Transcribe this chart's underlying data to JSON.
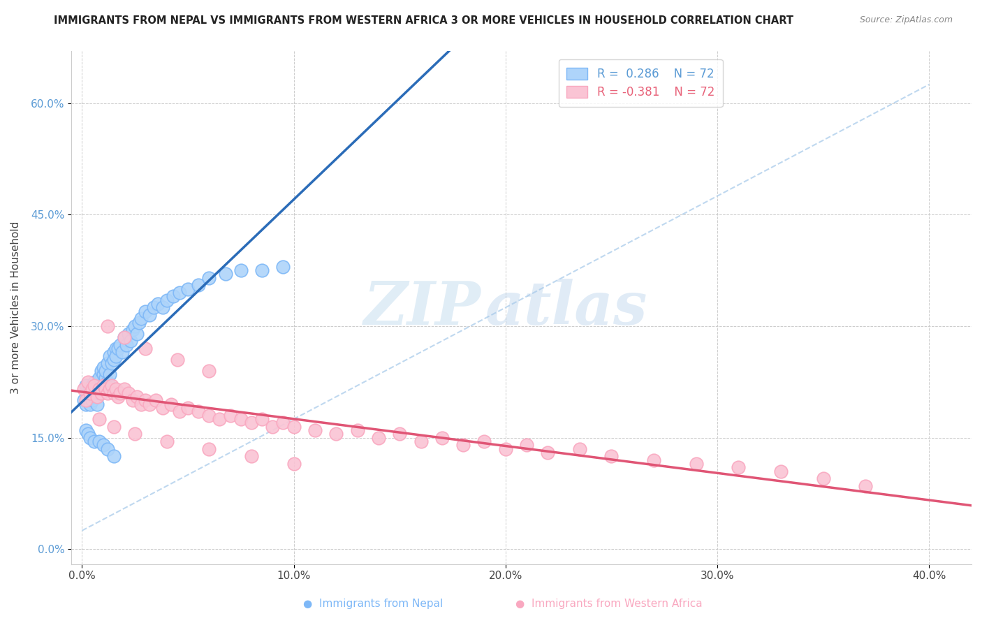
{
  "title": "IMMIGRANTS FROM NEPAL VS IMMIGRANTS FROM WESTERN AFRICA 3 OR MORE VEHICLES IN HOUSEHOLD CORRELATION CHART",
  "source": "Source: ZipAtlas.com",
  "ylabel": "3 or more Vehicles in Household",
  "x_tick_positions": [
    0.0,
    0.1,
    0.2,
    0.3,
    0.4
  ],
  "x_tick_labels": [
    "0.0%",
    "10.0%",
    "20.0%",
    "30.0%",
    "40.0%"
  ],
  "y_ticks": [
    0.0,
    0.15,
    0.3,
    0.45,
    0.6
  ],
  "y_tick_labels": [
    "0.0%",
    "15.0%",
    "30.0%",
    "45.0%",
    "60.0%"
  ],
  "xlim": [
    -0.005,
    0.42
  ],
  "ylim": [
    -0.02,
    0.67
  ],
  "nepal_color": "#7EB8F7",
  "nepal_color_fill": "#AED4FA",
  "wafrica_color": "#F9A8C0",
  "wafrica_color_fill": "#FAC4D4",
  "nepal_line_color": "#2B6CB8",
  "wafrica_line_color": "#E05575",
  "dashed_line_color": "#B8D4EE",
  "nepal_R": 0.286,
  "nepal_N": 72,
  "wafrica_R": -0.381,
  "wafrica_N": 72,
  "legend_label_nepal": "Immigrants from Nepal",
  "legend_label_wafrica": "Immigrants from Western Africa",
  "watermark_zip": "ZIP",
  "watermark_atlas": "atlas",
  "nepal_scatter_x": [
    0.001,
    0.002,
    0.002,
    0.003,
    0.003,
    0.003,
    0.004,
    0.004,
    0.004,
    0.005,
    0.005,
    0.005,
    0.006,
    0.006,
    0.006,
    0.007,
    0.007,
    0.007,
    0.008,
    0.008,
    0.008,
    0.009,
    0.009,
    0.01,
    0.01,
    0.01,
    0.011,
    0.011,
    0.012,
    0.012,
    0.013,
    0.013,
    0.014,
    0.015,
    0.015,
    0.016,
    0.016,
    0.017,
    0.018,
    0.019,
    0.02,
    0.021,
    0.022,
    0.023,
    0.024,
    0.025,
    0.026,
    0.027,
    0.028,
    0.03,
    0.032,
    0.034,
    0.036,
    0.038,
    0.04,
    0.043,
    0.046,
    0.05,
    0.055,
    0.06,
    0.068,
    0.075,
    0.085,
    0.095,
    0.002,
    0.003,
    0.004,
    0.006,
    0.008,
    0.01,
    0.012,
    0.015
  ],
  "nepal_scatter_y": [
    0.2,
    0.195,
    0.22,
    0.215,
    0.2,
    0.21,
    0.205,
    0.215,
    0.195,
    0.21,
    0.2,
    0.22,
    0.215,
    0.205,
    0.225,
    0.205,
    0.195,
    0.22,
    0.21,
    0.225,
    0.23,
    0.215,
    0.24,
    0.22,
    0.235,
    0.245,
    0.23,
    0.24,
    0.225,
    0.25,
    0.235,
    0.26,
    0.25,
    0.265,
    0.255,
    0.27,
    0.26,
    0.27,
    0.275,
    0.265,
    0.285,
    0.275,
    0.29,
    0.28,
    0.295,
    0.3,
    0.29,
    0.305,
    0.31,
    0.32,
    0.315,
    0.325,
    0.33,
    0.325,
    0.335,
    0.34,
    0.345,
    0.35,
    0.355,
    0.365,
    0.37,
    0.375,
    0.375,
    0.38,
    0.16,
    0.155,
    0.15,
    0.145,
    0.145,
    0.14,
    0.135,
    0.125
  ],
  "wafrica_scatter_x": [
    0.001,
    0.002,
    0.003,
    0.004,
    0.005,
    0.006,
    0.007,
    0.008,
    0.009,
    0.01,
    0.011,
    0.012,
    0.013,
    0.014,
    0.015,
    0.016,
    0.017,
    0.018,
    0.02,
    0.022,
    0.024,
    0.026,
    0.028,
    0.03,
    0.032,
    0.035,
    0.038,
    0.042,
    0.046,
    0.05,
    0.055,
    0.06,
    0.065,
    0.07,
    0.075,
    0.08,
    0.085,
    0.09,
    0.095,
    0.1,
    0.11,
    0.12,
    0.13,
    0.14,
    0.15,
    0.16,
    0.17,
    0.18,
    0.19,
    0.2,
    0.21,
    0.22,
    0.235,
    0.25,
    0.27,
    0.29,
    0.31,
    0.33,
    0.35,
    0.37,
    0.012,
    0.02,
    0.03,
    0.045,
    0.06,
    0.008,
    0.015,
    0.025,
    0.04,
    0.06,
    0.08,
    0.1
  ],
  "wafrica_scatter_y": [
    0.215,
    0.2,
    0.225,
    0.21,
    0.215,
    0.22,
    0.205,
    0.215,
    0.21,
    0.22,
    0.215,
    0.21,
    0.215,
    0.22,
    0.21,
    0.215,
    0.205,
    0.21,
    0.215,
    0.21,
    0.2,
    0.205,
    0.195,
    0.2,
    0.195,
    0.2,
    0.19,
    0.195,
    0.185,
    0.19,
    0.185,
    0.18,
    0.175,
    0.18,
    0.175,
    0.17,
    0.175,
    0.165,
    0.17,
    0.165,
    0.16,
    0.155,
    0.16,
    0.15,
    0.155,
    0.145,
    0.15,
    0.14,
    0.145,
    0.135,
    0.14,
    0.13,
    0.135,
    0.125,
    0.12,
    0.115,
    0.11,
    0.105,
    0.095,
    0.085,
    0.3,
    0.285,
    0.27,
    0.255,
    0.24,
    0.175,
    0.165,
    0.155,
    0.145,
    0.135,
    0.125,
    0.115
  ]
}
